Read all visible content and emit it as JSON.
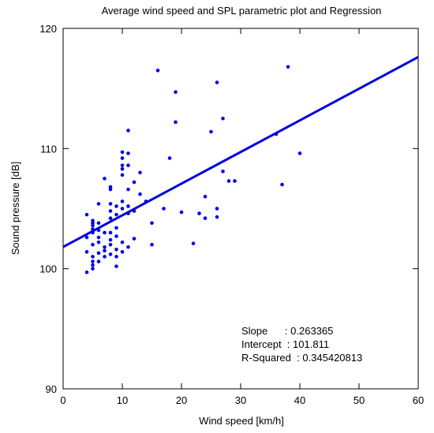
{
  "chart_data": {
    "type": "scatter",
    "title": "Average wind speed and SPL parametric plot and Regression",
    "xlabel": "Wind speed [km/h]",
    "ylabel": "Sound pressure [dB]",
    "xlim": [
      0,
      60
    ],
    "ylim": [
      90,
      120
    ],
    "x_ticks": [
      0,
      10,
      20,
      30,
      40,
      50,
      60
    ],
    "y_ticks": [
      90,
      100,
      110,
      120
    ],
    "grid": false,
    "point_color": "#0000ee",
    "line_color": "#0000dd",
    "points": [
      [
        4,
        99.7
      ],
      [
        4,
        101.4
      ],
      [
        4,
        102.6
      ],
      [
        4,
        104.5
      ],
      [
        5,
        100.0
      ],
      [
        5,
        100.3
      ],
      [
        5,
        100.6
      ],
      [
        5,
        101.0
      ],
      [
        5,
        102.0
      ],
      [
        5,
        103.0
      ],
      [
        5,
        103.3
      ],
      [
        5,
        103.6
      ],
      [
        5,
        103.8
      ],
      [
        5,
        104.0
      ],
      [
        6,
        100.6
      ],
      [
        6,
        101.3
      ],
      [
        6,
        102.2
      ],
      [
        6,
        102.6
      ],
      [
        6,
        103.2
      ],
      [
        6,
        103.8
      ],
      [
        6,
        105.4
      ],
      [
        7,
        101.0
      ],
      [
        7,
        101.5
      ],
      [
        7,
        101.8
      ],
      [
        7,
        103.0
      ],
      [
        7,
        107.5
      ],
      [
        8,
        101.2
      ],
      [
        8,
        102.0
      ],
      [
        8,
        102.4
      ],
      [
        8,
        103.0
      ],
      [
        8,
        104.2
      ],
      [
        8,
        104.8
      ],
      [
        8,
        105.4
      ],
      [
        8,
        106.6
      ],
      [
        8,
        106.8
      ],
      [
        9,
        100.2
      ],
      [
        9,
        101.0
      ],
      [
        9,
        101.6
      ],
      [
        9,
        102.7
      ],
      [
        9,
        103.4
      ],
      [
        9,
        104.5
      ],
      [
        9,
        105.2
      ],
      [
        10,
        101.4
      ],
      [
        10,
        102.2
      ],
      [
        10,
        105.0
      ],
      [
        10,
        105.6
      ],
      [
        10,
        107.8
      ],
      [
        10,
        108.3
      ],
      [
        10,
        108.6
      ],
      [
        10,
        109.2
      ],
      [
        10,
        109.7
      ],
      [
        11,
        101.8
      ],
      [
        11,
        104.6
      ],
      [
        11,
        105.2
      ],
      [
        11,
        106.6
      ],
      [
        11,
        108.6
      ],
      [
        11,
        109.6
      ],
      [
        11,
        111.5
      ],
      [
        12,
        102.5
      ],
      [
        12,
        104.8
      ],
      [
        12,
        107.2
      ],
      [
        13,
        106.2
      ],
      [
        13,
        108.0
      ],
      [
        14,
        105.6
      ],
      [
        15,
        102.0
      ],
      [
        15,
        103.8
      ],
      [
        16,
        116.5
      ],
      [
        17,
        105.0
      ],
      [
        18,
        109.2
      ],
      [
        19,
        112.2
      ],
      [
        19,
        114.7
      ],
      [
        20,
        104.7
      ],
      [
        22,
        102.1
      ],
      [
        23,
        104.6
      ],
      [
        24,
        104.2
      ],
      [
        24,
        106.0
      ],
      [
        25,
        111.4
      ],
      [
        26,
        104.3
      ],
      [
        26,
        105.0
      ],
      [
        26,
        115.5
      ],
      [
        27,
        108.1
      ],
      [
        27,
        112.5
      ],
      [
        28,
        107.3
      ],
      [
        29,
        107.3
      ],
      [
        36,
        111.2
      ],
      [
        37,
        107.0
      ],
      [
        38,
        116.8
      ],
      [
        40,
        109.6
      ]
    ],
    "regression": {
      "slope": 0.263365,
      "intercept": 101.811,
      "r_squared": 0.345420813
    },
    "stats_labels": {
      "slope": "Slope      : 0.263365",
      "intercept": "Intercept  : 101.811",
      "r_squared": "R-Squared  : 0.345420813"
    }
  }
}
